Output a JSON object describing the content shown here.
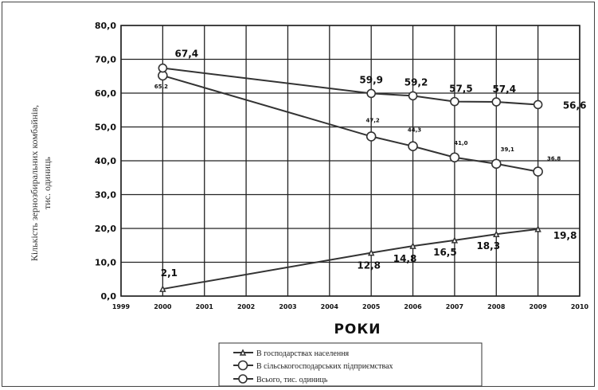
{
  "chart_data": {
    "type": "line",
    "title": "",
    "xlabel": "РОКИ",
    "ylabel_line1": "Кількість зернозбиральних комбайнів,",
    "ylabel_line2": "тис. одиниць",
    "xlim": [
      1999,
      2010
    ],
    "ylim": [
      0,
      80
    ],
    "x_ticks": [
      "1999",
      "2000",
      "2001",
      "2002",
      "2003",
      "2004",
      "2005",
      "2006",
      "2007",
      "2008",
      "2009",
      "2010"
    ],
    "y_ticks": [
      "0,0",
      "10,0",
      "20,0",
      "30,0",
      "40,0",
      "50,0",
      "60,0",
      "70,0",
      "80,0"
    ],
    "grid": true,
    "legend_position": "bottom",
    "series": [
      {
        "name": "В господарствах населення",
        "marker": "triangle",
        "x": [
          2000,
          2005,
          2006,
          2007,
          2008,
          2009
        ],
        "y": [
          2.1,
          12.8,
          14.8,
          16.5,
          18.3,
          19.8
        ]
      },
      {
        "name": "В сільськогосподарських підприємствах",
        "marker": "circle-large",
        "x": [
          2000,
          2005,
          2006,
          2007,
          2008,
          2009
        ],
        "y": [
          65.2,
          47.2,
          44.3,
          41.0,
          39.1,
          36.8
        ]
      },
      {
        "name": "Всього, тис. одиниць",
        "marker": "circle",
        "x": [
          2000,
          2005,
          2006,
          2007,
          2008,
          2009
        ],
        "y": [
          67.4,
          59.9,
          59.2,
          57.5,
          57.4,
          56.6
        ]
      }
    ],
    "data_labels": [
      {
        "text": "2,1",
        "series": 0,
        "point": 0
      },
      {
        "text": "12,8",
        "series": 0,
        "point": 1
      },
      {
        "text": "14,8",
        "series": 0,
        "point": 2
      },
      {
        "text": "16,5",
        "series": 0,
        "point": 3
      },
      {
        "text": "18,3",
        "series": 0,
        "point": 4
      },
      {
        "text": "19,8",
        "series": 0,
        "point": 5
      },
      {
        "text": "65,2",
        "series": 1,
        "point": 0
      },
      {
        "text": "47,2",
        "series": 1,
        "point": 1
      },
      {
        "text": "44,3",
        "series": 1,
        "point": 2
      },
      {
        "text": "41,0",
        "series": 1,
        "point": 3
      },
      {
        "text": "39,1",
        "series": 1,
        "point": 4
      },
      {
        "text": "36,8",
        "series": 1,
        "point": 5
      },
      {
        "text": "67,4",
        "series": 2,
        "point": 0
      },
      {
        "text": "59,9",
        "series": 2,
        "point": 1
      },
      {
        "text": "59,2",
        "series": 2,
        "point": 2
      },
      {
        "text": "57,5",
        "series": 2,
        "point": 3
      },
      {
        "text": "57,4",
        "series": 2,
        "point": 4
      },
      {
        "text": "56,6",
        "series": 2,
        "point": 5
      }
    ]
  },
  "colors": {
    "line": "#333333",
    "grid": "#222222",
    "text": "#111111",
    "marker_fill": "#ffffff"
  }
}
